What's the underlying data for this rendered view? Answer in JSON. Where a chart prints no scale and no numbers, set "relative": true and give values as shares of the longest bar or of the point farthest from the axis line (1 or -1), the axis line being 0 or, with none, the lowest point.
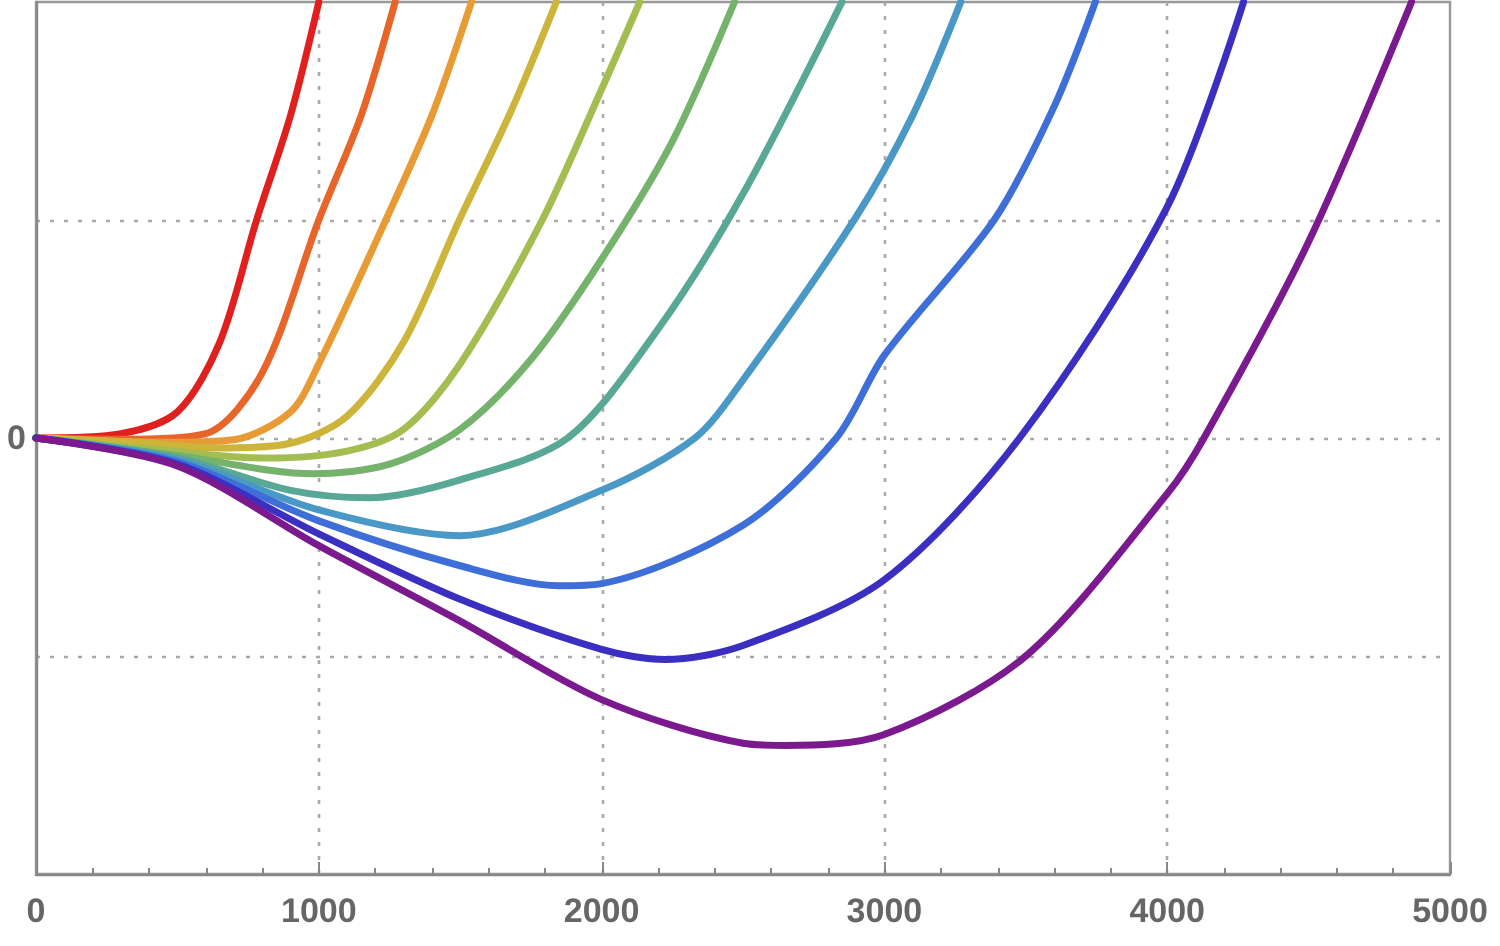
{
  "chart_data": {
    "type": "line",
    "relative": true,
    "xlim": [
      0,
      5000
    ],
    "xticks": [
      0,
      1000,
      2000,
      3000,
      4000,
      5000
    ],
    "grid": true,
    "marker": "none",
    "annotations": [
      "0"
    ],
    "series": [
      {
        "color": "#e0201e",
        "x": [
          0,
          300,
          500,
          650,
          780,
          900,
          1000
        ],
        "values": [
          0,
          0.01,
          0.06,
          0.22,
          0.5,
          0.74,
          1
        ]
      },
      {
        "color": "#e8652a",
        "x": [
          0,
          300,
          600,
          800,
          1000,
          1150,
          1270
        ],
        "values": [
          0,
          -0.003,
          0.01,
          0.15,
          0.5,
          0.74,
          1
        ]
      },
      {
        "color": "#e89a35",
        "x": [
          0,
          450,
          700,
          900,
          1000,
          1237,
          1400,
          1540
        ],
        "values": [
          0,
          -0.01,
          -0.004,
          0.06,
          0.17,
          0.5,
          0.74,
          1
        ]
      },
      {
        "color": "#cdb43a",
        "x": [
          0,
          350,
          650,
          900,
          1100,
          1300,
          1497,
          1680,
          1840
        ],
        "values": [
          0,
          -0.01,
          -0.023,
          -0.012,
          0.05,
          0.22,
          0.5,
          0.75,
          1
        ]
      },
      {
        "color": "#a3bd50",
        "x": [
          0,
          400,
          815,
          1100,
          1300,
          1500,
          1790,
          2000,
          2135
        ],
        "values": [
          0,
          -0.025,
          -0.046,
          -0.03,
          0.02,
          0.17,
          0.5,
          0.8,
          1
        ]
      },
      {
        "color": "#75b26c",
        "x": [
          0,
          500,
          980,
          1250,
          1500,
          1750,
          2000,
          2250,
          2470
        ],
        "values": [
          0,
          -0.04,
          -0.082,
          -0.06,
          0.02,
          0.18,
          0.41,
          0.68,
          1
        ]
      },
      {
        "color": "#58a895",
        "x": [
          0,
          500,
          900,
          1179,
          1500,
          1880,
          2200,
          2500,
          2850
        ],
        "values": [
          0,
          -0.045,
          -0.12,
          -0.137,
          -0.096,
          0,
          0.25,
          0.56,
          1
        ]
      },
      {
        "color": "#4a98c6",
        "x": [
          0,
          500,
          1000,
          1497,
          2000,
          2330,
          2500,
          2893,
          3100,
          3270
        ],
        "values": [
          0,
          -0.05,
          -0.165,
          -0.224,
          -0.12,
          0,
          0.133,
          0.5,
          0.74,
          1
        ]
      },
      {
        "color": "#3e6ed8",
        "x": [
          0,
          500,
          1000,
          1500,
          1850,
          2000,
          2500,
          2830,
          3000,
          3388,
          3600,
          3746
        ],
        "values": [
          0,
          -0.055,
          -0.19,
          -0.293,
          -0.339,
          -0.334,
          -0.2,
          0,
          0.19,
          0.5,
          0.76,
          1
        ]
      },
      {
        "color": "#3b2fc2",
        "x": [
          0,
          500,
          1000,
          1500,
          2000,
          2225,
          2500,
          3000,
          3478,
          4000,
          4270
        ],
        "values": [
          0,
          -0.06,
          -0.22,
          -0.37,
          -0.485,
          -0.508,
          -0.476,
          -0.325,
          0,
          0.53,
          1
        ]
      },
      {
        "color": "#7a1a8e",
        "x": [
          0,
          500,
          1000,
          1500,
          2000,
          2500,
          2650,
          3000,
          3500,
          4000,
          4130,
          4500,
          4864
        ],
        "values": [
          0,
          -0.064,
          -0.247,
          -0.42,
          -0.6,
          -0.7,
          -0.705,
          -0.68,
          -0.5,
          -0.128,
          0,
          0.45,
          1
        ]
      }
    ]
  }
}
